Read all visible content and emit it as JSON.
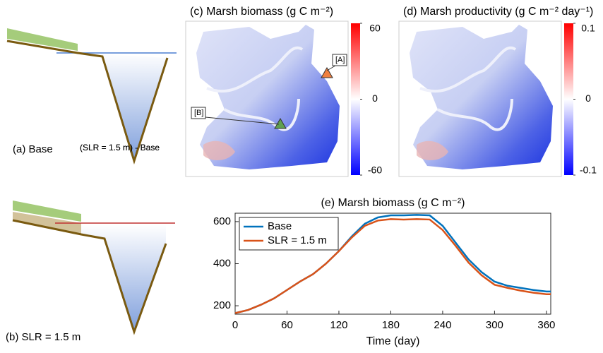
{
  "diagrams": [
    {
      "label": "(a) Base"
    },
    {
      "label": "(b) SLR = 1.5 m"
    }
  ],
  "maps": [
    {
      "title": "(c) Marsh biomass (g C m⁻²)",
      "clim": [
        -60,
        60
      ],
      "cticks": [
        60,
        0,
        -60
      ],
      "colors": [
        "#ff0000",
        "#ffffff",
        "#0000ff"
      ],
      "annotations": [
        "[A]",
        "[B]"
      ],
      "note": "(SLR = 1.5 m) - Base"
    },
    {
      "title": "(d) Marsh productivity (g C m⁻² day⁻¹)",
      "clim": [
        -0.1,
        0.1
      ],
      "cticks": [
        0.1,
        0,
        -0.1
      ],
      "colors": [
        "#ff0000",
        "#ffffff",
        "#0000ff"
      ],
      "note": "(SLR = 1.5 m) - Base"
    }
  ],
  "chart_data": {
    "type": "line",
    "title": "(e) Marsh biomass (g C m⁻²)",
    "x_label": "Time (day)",
    "x": [
      0,
      15,
      30,
      45,
      60,
      75,
      90,
      105,
      120,
      135,
      150,
      165,
      180,
      195,
      210,
      225,
      240,
      255,
      270,
      285,
      300,
      315,
      330,
      345,
      360,
      365
    ],
    "series": [
      {
        "name": "Base",
        "color": "#0072bd",
        "values": [
          165,
          180,
          205,
          235,
          275,
          315,
          350,
          400,
          460,
          530,
          590,
          620,
          630,
          630,
          632,
          630,
          580,
          500,
          420,
          360,
          315,
          295,
          285,
          275,
          268,
          268
        ]
      },
      {
        "name": "SLR = 1.5 m",
        "color": "#d95319",
        "values": [
          165,
          180,
          205,
          235,
          275,
          315,
          350,
          400,
          460,
          525,
          580,
          605,
          612,
          610,
          612,
          610,
          560,
          485,
          405,
          345,
          300,
          285,
          272,
          262,
          255,
          255
        ]
      }
    ],
    "xlim": [
      0,
      365
    ],
    "xticks": [
      0,
      60,
      120,
      180,
      240,
      300,
      360
    ],
    "ylim": [
      160,
      640
    ],
    "yticks": [
      200,
      400,
      600
    ],
    "legend": "upper left"
  }
}
